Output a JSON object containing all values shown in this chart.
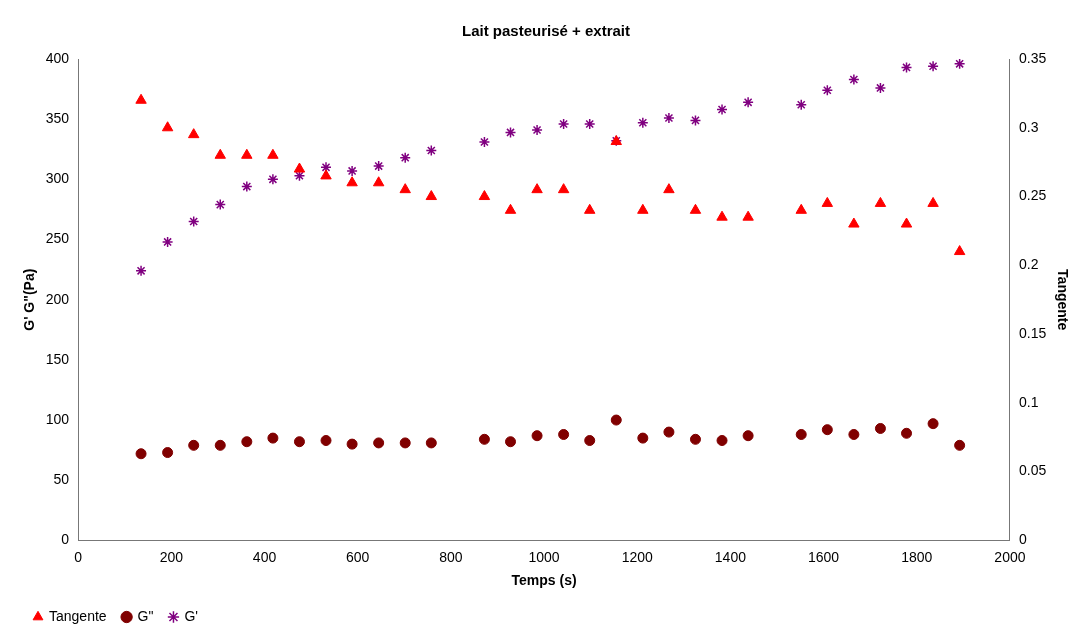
{
  "chart_data": {
    "type": "scatter",
    "title": "Lait pasteurisé + extrait",
    "xlabel": "Temps (s)",
    "ylabel": "G' G\"(Pa)",
    "y2label": "Tangente",
    "x": [
      135,
      192,
      248,
      305,
      362,
      418,
      475,
      532,
      588,
      645,
      702,
      758,
      872,
      928,
      985,
      1042,
      1098,
      1155,
      1212,
      1268,
      1325,
      1382,
      1438,
      1552,
      1608,
      1665,
      1722,
      1778,
      1835,
      1892
    ],
    "series": [
      {
        "name": "G'",
        "color": "#800080",
        "marker": "cross",
        "values": [
          224,
          248,
          265,
          279,
          294,
          300,
          303,
          310,
          307,
          311,
          318,
          324,
          331,
          339,
          341,
          346,
          346,
          332,
          347,
          351,
          349,
          358,
          364,
          362,
          374,
          383,
          376,
          393,
          394,
          396
        ]
      },
      {
        "name": "G\"",
        "color": "#800000",
        "marker": "circle",
        "values": [
          72,
          73,
          79,
          79,
          82,
          85,
          82,
          83,
          80,
          81,
          81,
          81,
          84,
          82,
          87,
          88,
          83,
          100,
          85,
          90,
          84,
          83,
          87,
          88,
          92,
          88,
          93,
          89,
          97,
          79
        ]
      },
      {
        "name": "Tangente",
        "color": "#ff0000",
        "marker": "triangle",
        "axis": "y2",
        "values": [
          0.32,
          0.3,
          0.295,
          0.28,
          0.28,
          0.28,
          0.27,
          0.265,
          0.26,
          0.26,
          0.255,
          0.25,
          0.25,
          0.24,
          0.255,
          0.255,
          0.24,
          0.29,
          0.24,
          0.255,
          0.24,
          0.235,
          0.235,
          0.24,
          0.245,
          0.23,
          0.245,
          0.23,
          0.245,
          0.21
        ]
      }
    ],
    "xlim": [
      0,
      2000
    ],
    "xticks": [
      0,
      200,
      400,
      600,
      800,
      1000,
      1200,
      1400,
      1600,
      1800,
      2000
    ],
    "ylim": [
      0,
      400
    ],
    "yticks": [
      0,
      50,
      100,
      150,
      200,
      250,
      300,
      350,
      400
    ],
    "y2lim": [
      0,
      0.35
    ],
    "y2ticks": [
      0,
      0.05,
      0.1,
      0.15,
      0.2,
      0.25,
      0.3,
      0.35
    ],
    "grid": false,
    "legend": "bottom"
  }
}
